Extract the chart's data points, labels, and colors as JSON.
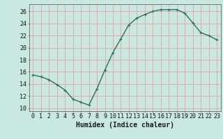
{
  "x": [
    0,
    1,
    2,
    3,
    4,
    5,
    6,
    7,
    8,
    9,
    10,
    11,
    12,
    13,
    14,
    15,
    16,
    17,
    18,
    19,
    20,
    21,
    22,
    23
  ],
  "y": [
    15.5,
    15.2,
    14.7,
    13.9,
    13.0,
    11.5,
    11.0,
    10.5,
    13.2,
    16.3,
    19.2,
    21.5,
    23.8,
    24.9,
    25.5,
    26.0,
    26.3,
    26.3,
    26.3,
    25.7,
    24.1,
    22.5,
    22.0,
    21.3
  ],
  "line_color": "#2e6e5e",
  "marker": "+",
  "bg_color": "#c8e8e0",
  "grid_color": "#e8a0a0",
  "xlabel": "Humidex (Indice chaleur)",
  "ylabel_ticks": [
    10,
    12,
    14,
    16,
    18,
    20,
    22,
    24,
    26
  ],
  "ylim": [
    9.5,
    27.2
  ],
  "xlim": [
    -0.5,
    23.5
  ],
  "xlabel_fontsize": 7,
  "tick_fontsize": 6,
  "line_width": 1.0,
  "marker_size": 3.5
}
